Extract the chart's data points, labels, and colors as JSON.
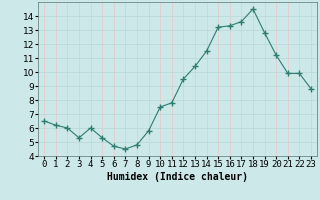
{
  "x": [
    0,
    1,
    2,
    3,
    4,
    5,
    6,
    7,
    8,
    9,
    10,
    11,
    12,
    13,
    14,
    15,
    16,
    17,
    18,
    19,
    20,
    21,
    22,
    23
  ],
  "y": [
    6.5,
    6.2,
    6.0,
    5.3,
    6.0,
    5.3,
    4.7,
    4.5,
    4.8,
    5.8,
    7.5,
    7.8,
    9.5,
    10.4,
    11.5,
    13.2,
    13.3,
    13.6,
    14.5,
    12.8,
    11.2,
    9.9,
    9.9,
    8.8
  ],
  "line_color": "#2e7d6e",
  "marker": "+",
  "marker_size": 4,
  "bg_color": "#cce8e8",
  "vgrid_color": "#e8c8c8",
  "hgrid_color": "#b8d8d8",
  "xlabel": "Humidex (Indice chaleur)",
  "ylim": [
    4,
    15
  ],
  "xlim": [
    -0.5,
    23.5
  ],
  "yticks": [
    4,
    5,
    6,
    7,
    8,
    9,
    10,
    11,
    12,
    13,
    14
  ],
  "xticks": [
    0,
    1,
    2,
    3,
    4,
    5,
    6,
    7,
    8,
    9,
    10,
    11,
    12,
    13,
    14,
    15,
    16,
    17,
    18,
    19,
    20,
    21,
    22,
    23
  ],
  "xlabel_fontsize": 7,
  "tick_fontsize": 6.5
}
